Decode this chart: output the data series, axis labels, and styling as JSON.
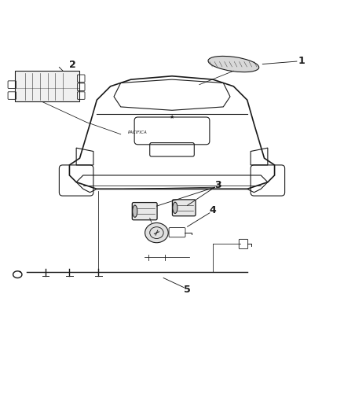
{
  "background_color": "#ffffff",
  "line_color": "#1a1a1a",
  "fig_width": 4.38,
  "fig_height": 5.33,
  "dpi": 100
}
